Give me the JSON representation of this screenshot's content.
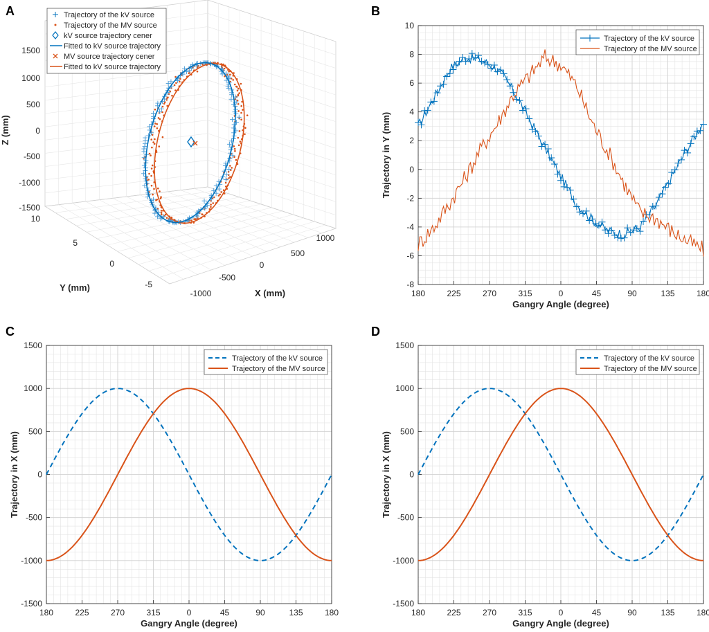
{
  "colors": {
    "kv": "#0072BD",
    "mv": "#D95319",
    "grid": "#e3e3e3",
    "axis": "#262626"
  },
  "panels": {
    "a": "A",
    "b": "B",
    "c": "C",
    "d": "D"
  },
  "chart_data": [
    {
      "id": "A",
      "type": "scatter",
      "view": "3d",
      "xlabel": "X (mm)",
      "ylabel": "Y (mm)",
      "zlabel": "Z (mm)",
      "xticks": [
        "-1000",
        "-500",
        "0",
        "500",
        "1000"
      ],
      "yticks": [
        "10",
        "5",
        "0",
        "-5"
      ],
      "zticks": [
        "1500",
        "1000",
        "500",
        "0",
        "-500",
        "-1000",
        "-1500"
      ],
      "xlim": [
        -1000,
        1000
      ],
      "ylim": [
        -5,
        10
      ],
      "zlim": [
        -1500,
        1500
      ],
      "legend": [
        "Trajectory of the kV source",
        "Trajectory of the MV source",
        "kV source trajectory cener",
        "Fitted to kV source trajectory",
        "MV source trajectory cener",
        "Fitted to kV source trajectory"
      ],
      "series": [
        {
          "name": "Trajectory of the kV source",
          "radius": 1000,
          "y_mean": 2,
          "marker": "+"
        },
        {
          "name": "Trajectory of the MV source",
          "radius": 1000,
          "y_mean": 1,
          "marker": "."
        },
        {
          "name": "kV source trajectory cener",
          "center": [
            0,
            2,
            0
          ],
          "marker": "diamond"
        },
        {
          "name": "MV source trajectory cener",
          "center": [
            0,
            1,
            0
          ],
          "marker": "x"
        }
      ]
    },
    {
      "id": "B",
      "type": "line",
      "xlabel": "Gangry Angle (degree)",
      "ylabel": "Trajectory in Y (mm)",
      "xticks": [
        "180",
        "225",
        "270",
        "315",
        "0",
        "45",
        "90",
        "135",
        "180"
      ],
      "xlim": [
        0,
        360
      ],
      "ylim": [
        -8,
        10
      ],
      "yticks": [
        -8,
        -6,
        -4,
        -2,
        0,
        2,
        4,
        6,
        8,
        10
      ],
      "legend_position": "top-right",
      "series": [
        {
          "name": "Trajectory of the kV source",
          "color": "#0072BD",
          "marker": "+",
          "x": [
            0,
            20,
            40,
            60,
            80,
            100,
            120,
            140,
            160,
            180,
            200,
            220,
            240,
            260,
            280,
            300,
            320,
            340,
            360
          ],
          "values": [
            3.0,
            5.0,
            7.0,
            7.8,
            7.6,
            7.0,
            5.5,
            3.5,
            1.5,
            -0.5,
            -2.4,
            -3.5,
            -4.3,
            -4.5,
            -4.0,
            -2.5,
            -0.5,
            1.5,
            3.3
          ]
        },
        {
          "name": "Trajectory of the MV source",
          "color": "#D95319",
          "x": [
            0,
            20,
            40,
            60,
            80,
            100,
            120,
            140,
            160,
            180,
            200,
            220,
            240,
            260,
            280,
            300,
            320,
            340,
            360
          ],
          "values": [
            -5.2,
            -4.0,
            -2.3,
            -0.5,
            1.5,
            3.2,
            5.2,
            6.5,
            7.8,
            7.3,
            5.8,
            3.2,
            1.2,
            -1.0,
            -3.0,
            -3.4,
            -4.3,
            -5.0,
            -5.6
          ]
        }
      ]
    },
    {
      "id": "C",
      "type": "line",
      "xlabel": "Gangry Angle (degree)",
      "ylabel": "Trajectory in X (mm)",
      "xticks": [
        "180",
        "225",
        "270",
        "315",
        "0",
        "45",
        "90",
        "135",
        "180"
      ],
      "xlim": [
        0,
        360
      ],
      "ylim": [
        -1500,
        1500
      ],
      "yticks": [
        -1500,
        -1000,
        -500,
        0,
        500,
        1000,
        1500
      ],
      "legend_position": "top-right",
      "series": [
        {
          "name": "Trajectory of the kV source",
          "color": "#0072BD",
          "style": "dashed",
          "amplitude": 1000,
          "phase": "sin"
        },
        {
          "name": "Trajectory of the MV source",
          "color": "#D95319",
          "style": "solid",
          "amplitude": 1000,
          "phase": "-cos"
        }
      ]
    },
    {
      "id": "D",
      "type": "line",
      "xlabel": "Gangry Angle (degree)",
      "ylabel": "Trajectory in X (mm)",
      "xticks": [
        "180",
        "225",
        "270",
        "315",
        "0",
        "45",
        "90",
        "135",
        "180"
      ],
      "xlim": [
        0,
        360
      ],
      "ylim": [
        -1500,
        1500
      ],
      "yticks": [
        -1500,
        -1000,
        -500,
        0,
        500,
        1000,
        1500
      ],
      "legend_position": "top-right",
      "series": [
        {
          "name": "Trajectory of the kV source",
          "color": "#0072BD",
          "style": "dashed",
          "amplitude": 1000,
          "phase": "sin"
        },
        {
          "name": "Trajectory of the MV source",
          "color": "#D95319",
          "style": "solid",
          "amplitude": 1000,
          "phase": "-cos"
        }
      ]
    }
  ]
}
